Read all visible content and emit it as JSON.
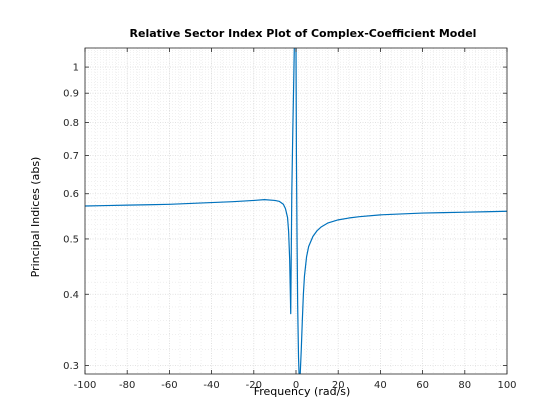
{
  "chart_data": {
    "type": "line",
    "title": "Relative Sector Index Plot of Complex-Coefficient Model",
    "xlabel": "Frequency (rad/s)",
    "ylabel": "Principal Indices (abs)",
    "xlim": [
      -100,
      100
    ],
    "ylim": [
      0.29,
      1.08
    ],
    "yscale": "log",
    "grid": "on (major and minor, dotted)",
    "xticks": [
      -100,
      -80,
      -60,
      -40,
      -20,
      0,
      20,
      40,
      60,
      80,
      100
    ],
    "xtick_labels": [
      "-100",
      "-80",
      "-60",
      "-40",
      "-20",
      "0",
      "20",
      "40",
      "60",
      "80",
      "100"
    ],
    "yticks": [
      0.3,
      0.4,
      0.5,
      0.6,
      0.7,
      0.8,
      0.9,
      1
    ],
    "ytick_labels": [
      "0.3",
      "0.4",
      "0.5",
      "0.6",
      "0.7",
      "0.8",
      "0.9",
      "1"
    ],
    "colors": {
      "line": "#0072BD",
      "grid": "#d9d9d9",
      "axes": "#262626"
    },
    "series": [
      {
        "x": [
          -100,
          -90,
          -80,
          -70,
          -60,
          -50,
          -40,
          -30,
          -20,
          -15,
          -10,
          -8,
          -6,
          -5,
          -4,
          -3.5,
          -3,
          -2.5,
          -2,
          -1.5,
          -1,
          -0.6,
          -0.3,
          0,
          0.2,
          0.5,
          0.8,
          1.2,
          1.5,
          2,
          2.5,
          3,
          3.5,
          4,
          5,
          6,
          8,
          10,
          12,
          15,
          20,
          25,
          30,
          40,
          50,
          60,
          70,
          80,
          90,
          100
        ],
        "y": [
          0.571,
          0.572,
          0.573,
          0.574,
          0.575,
          0.577,
          0.579,
          0.581,
          0.584,
          0.586,
          0.584,
          0.582,
          0.575,
          0.565,
          0.545,
          0.515,
          0.46,
          0.37,
          0.6,
          0.78,
          0.98,
          1.2,
          1.2,
          1.1,
          0.7,
          0.5,
          0.38,
          0.31,
          0.287,
          0.29,
          0.32,
          0.36,
          0.4,
          0.43,
          0.465,
          0.485,
          0.505,
          0.517,
          0.525,
          0.533,
          0.54,
          0.544,
          0.547,
          0.551,
          0.553,
          0.555,
          0.556,
          0.557,
          0.558,
          0.559
        ]
      }
    ]
  }
}
